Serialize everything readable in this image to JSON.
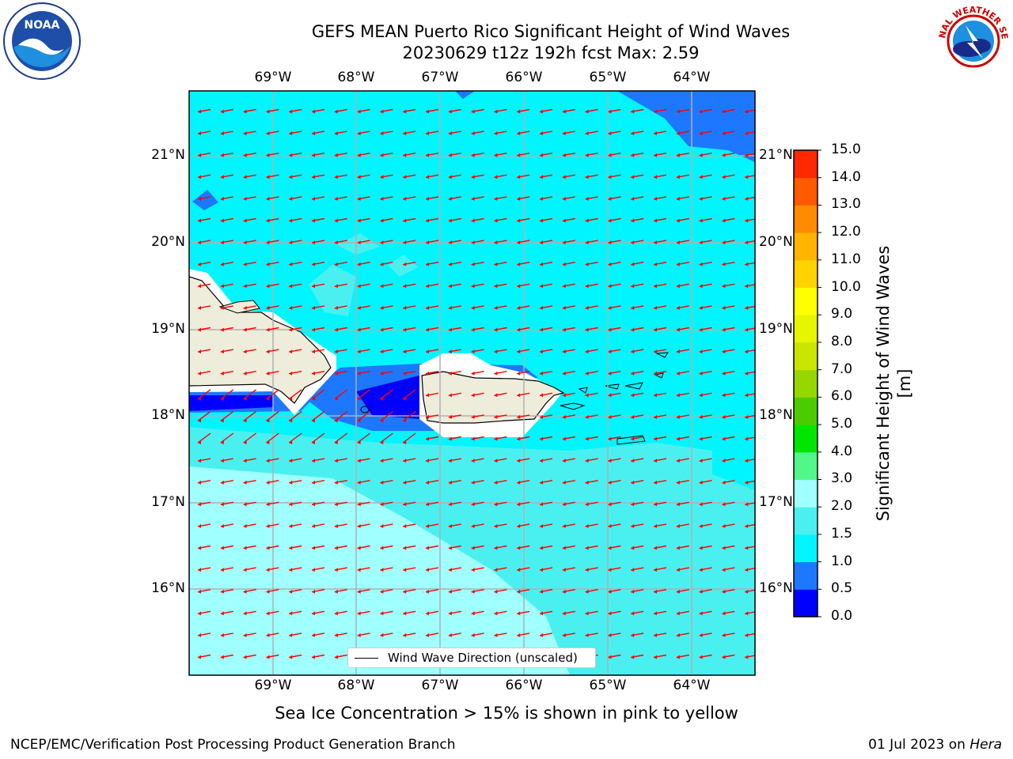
{
  "title": {
    "line1": "GEFS MEAN Puerto Rico Significant Height of Wind Waves",
    "line2": "20230629 t12z 192h fcst   Max: 2.59"
  },
  "map": {
    "lon_labels": [
      "69°W",
      "68°W",
      "67°W",
      "66°W",
      "65°W",
      "64°W"
    ],
    "lat_labels": [
      "21°N",
      "20°N",
      "19°N",
      "18°N",
      "17°N",
      "16°N"
    ],
    "arrow_color": "#ff0000",
    "land_color": "#eeeddc",
    "legend_label": "Wind Wave Direction (unscaled)"
  },
  "colorbar": {
    "title": "Significant Height of Wind Waves [m]",
    "tick_labels": [
      "0.0",
      "0.5",
      "1.0",
      "1.5",
      "2.0",
      "3.0",
      "4.0",
      "5.0",
      "6.0",
      "7.0",
      "8.0",
      "9.0",
      "10.0",
      "11.0",
      "12.0",
      "13.0",
      "14.0",
      "15.0"
    ],
    "colors": [
      "#0000ff",
      "#1e78ff",
      "#00f5ff",
      "#4af0f0",
      "#a0ffff",
      "#52f78a",
      "#00e600",
      "#4ccc00",
      "#96d700",
      "#c8e600",
      "#e6f500",
      "#ffff00",
      "#ffd200",
      "#ffb400",
      "#ff8c00",
      "#ff5a00",
      "#ff2800"
    ]
  },
  "footer": {
    "ice_note": "Sea Ice Concentration > 15% is shown in pink to yellow",
    "branch": "NCEP/EMC/Verification Post Processing Product Generation Branch",
    "date": "01 Jul 2023 on ",
    "host": "Hera"
  },
  "logos": {
    "noaa_text": "NOAA",
    "nws_text": "NATIONAL WEATHER SERVICE"
  }
}
